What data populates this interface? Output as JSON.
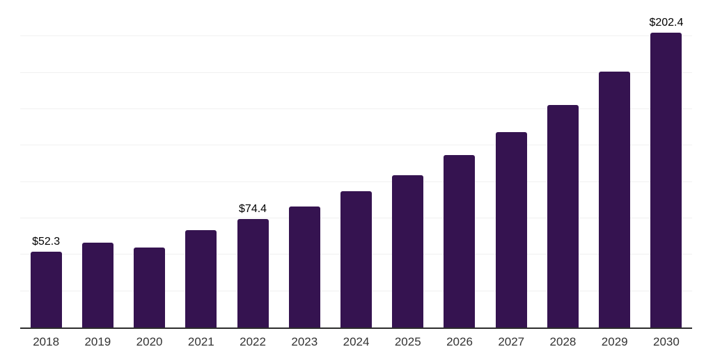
{
  "chart_data": {
    "type": "bar",
    "title": "",
    "xlabel": "",
    "ylabel": "",
    "categories": [
      "2018",
      "2019",
      "2020",
      "2021",
      "2022",
      "2023",
      "2024",
      "2025",
      "2026",
      "2027",
      "2028",
      "2029",
      "2030"
    ],
    "values": [
      52.3,
      58.3,
      55.0,
      67.0,
      74.4,
      83.2,
      93.5,
      104.8,
      118.6,
      134.2,
      152.9,
      175.7,
      202.4
    ],
    "value_labels": [
      "$52.3",
      "",
      "",
      "",
      "$74.4",
      "",
      "",
      "",
      "",
      "",
      "",
      "",
      "$202.4"
    ],
    "ylim": [
      0,
      225
    ],
    "grid": true,
    "gridline_step": 25,
    "y_tick_labels_shown": false,
    "legend": "none",
    "colors": {
      "bar": "#351350",
      "gridline": "#f0f0f0",
      "axis": "#2d2d2d",
      "tick_label": "#333333",
      "value_label": "#000000",
      "background": "#ffffff"
    }
  }
}
